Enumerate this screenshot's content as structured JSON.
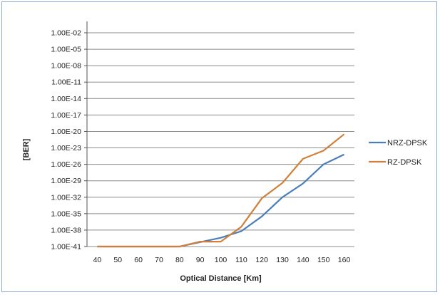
{
  "chart_data": {
    "type": "line",
    "xlabel": "Optical Distance [Km]",
    "ylabel": "[BER]",
    "x": [
      40,
      50,
      60,
      70,
      80,
      90,
      100,
      110,
      120,
      130,
      140,
      150,
      160
    ],
    "y_ticks": [
      "1.00E-02",
      "1.00E-05",
      "1.00E-08",
      "1.00E-11",
      "1.00E-14",
      "1.00E-17",
      "1.00E-20",
      "1.00E-23",
      "1.00E-26",
      "1.00E-29",
      "1.00E-32",
      "1.00E-35",
      "1.00E-38",
      "1.00E-41"
    ],
    "y_scale": "log10",
    "ylim_exponent": [
      -41,
      -2
    ],
    "grid": true,
    "legend_position": "right",
    "series": [
      {
        "name": "NRZ-DPSK",
        "color": "#4a7ebb",
        "log10_values": [
          -41,
          -41,
          -41,
          -41,
          -41,
          -40.2,
          -39.4,
          -38.2,
          -35.5,
          -32,
          -29.5,
          -26,
          -24.2
        ]
      },
      {
        "name": "RZ-DPSK",
        "color": "#d0803a",
        "log10_values": [
          -41,
          -41,
          -41,
          -41,
          -41,
          -40.1,
          -40.1,
          -37.4,
          -32.2,
          -29.4,
          -25,
          -23.5,
          -20.5
        ]
      }
    ]
  }
}
